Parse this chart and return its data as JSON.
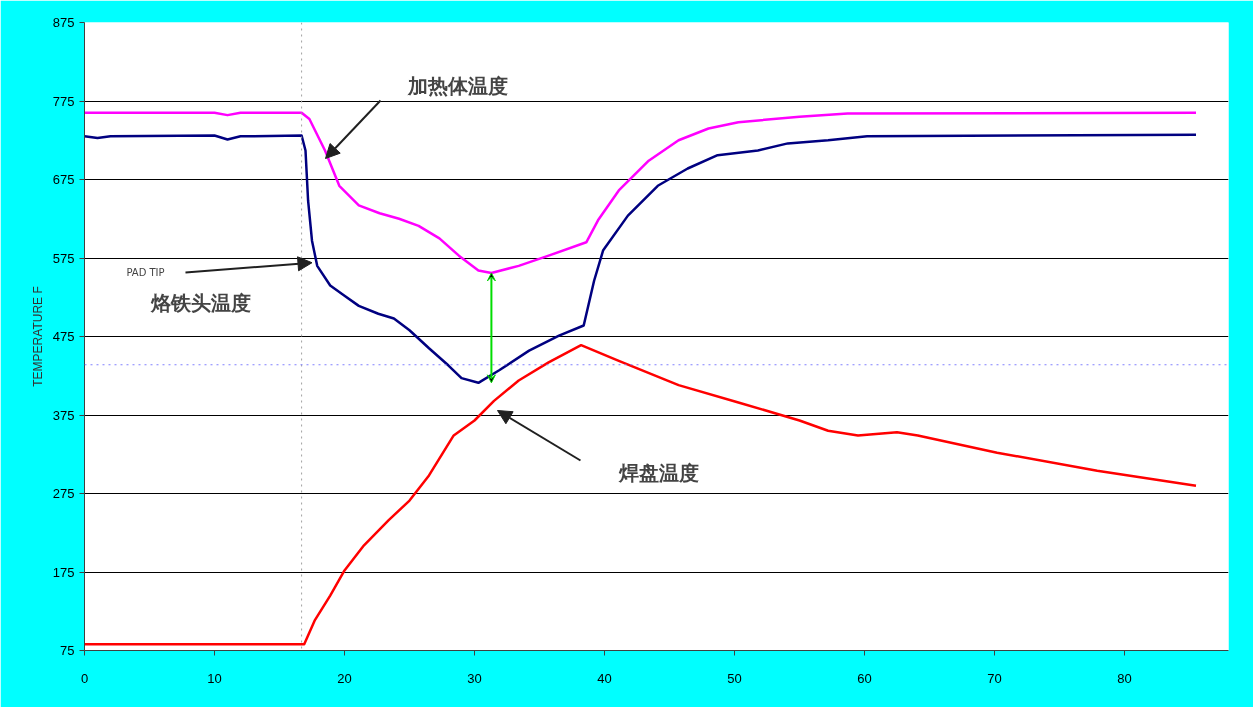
{
  "chart_data": {
    "type": "line",
    "ylabel": "TEMPERATURE F",
    "xlim": [
      0,
      88
    ],
    "xticks": [
      0,
      10,
      20,
      30,
      40,
      50,
      60,
      70,
      80
    ],
    "ylim": [
      75,
      875
    ],
    "yticks": [
      75,
      175,
      275,
      375,
      475,
      575,
      675,
      775,
      875
    ],
    "grid": "y",
    "line_style": "solid",
    "marker": "none",
    "series": [
      {
        "color": "#ff00ff",
        "x": [
          0,
          10,
          11,
          12,
          16.7,
          17.3,
          18.5,
          19.6,
          21.1,
          22.7,
          24.2,
          25.7,
          27.3,
          28.8,
          30.3,
          31.3,
          33.4,
          35.7,
          38.6,
          39.5,
          41.1,
          43.4,
          45.7,
          48.0,
          50.3,
          55.0,
          58.7,
          85.5
        ],
        "values": [
          760,
          760,
          757,
          760,
          760,
          752,
          712,
          667,
          642,
          632,
          625,
          616,
          600,
          578,
          559,
          556,
          565,
          578,
          595,
          623,
          661,
          699,
          725,
          740,
          748,
          755,
          759,
          760
        ]
      },
      {
        "color": "#000080",
        "x": [
          0,
          1,
          2,
          10,
          11,
          12,
          16.7,
          17.0,
          17.2,
          17.5,
          17.9,
          18.9,
          20.0,
          21.1,
          22.6,
          23.8,
          25.0,
          26.5,
          28.0,
          29.0,
          30.3,
          31.9,
          34.2,
          36.5,
          38.4,
          39.2,
          39.9,
          41.8,
          44.1,
          46.4,
          48.7,
          51.8,
          54.1,
          57.2,
          60.2,
          85.5
        ],
        "values": [
          730,
          728,
          730,
          731,
          726,
          730,
          731,
          712,
          648,
          597,
          565,
          540,
          527,
          514,
          504,
          498,
          483,
          460,
          438,
          422,
          416,
          432,
          457,
          476,
          489,
          546,
          585,
          629,
          667,
          689,
          706,
          712,
          721,
          725,
          730,
          732
        ]
      },
      {
        "color": "#ff0000",
        "x": [
          0,
          16.9,
          17.7,
          18.9,
          20.0,
          21.5,
          23.4,
          25.0,
          26.5,
          28.4,
          30.0,
          31.5,
          33.4,
          35.7,
          38.2,
          41.1,
          45.7,
          50.3,
          55.0,
          57.2,
          59.5,
          62.5,
          64.1,
          70.2,
          77.9,
          85.5
        ],
        "values": [
          83,
          83,
          113,
          145,
          177,
          209,
          241,
          266,
          298,
          349,
          368,
          393,
          419,
          442,
          464,
          444,
          413,
          391,
          368,
          355,
          349,
          353,
          349,
          327,
          304,
          285
        ]
      }
    ],
    "ref_lines": [
      {
        "axis": "x",
        "value": 16.7,
        "color": "#a0a0a0",
        "line_style": "dotted"
      },
      {
        "axis": "y",
        "value": 439,
        "color": "#8080ff",
        "line_style": "dotted"
      }
    ],
    "annotations": [
      "加热体温度",
      "PAD TIP",
      {
        "text": "烙铁头温度",
        "x": 17.5,
        "y": 569
      },
      "焊盘温度"
    ]
  }
}
